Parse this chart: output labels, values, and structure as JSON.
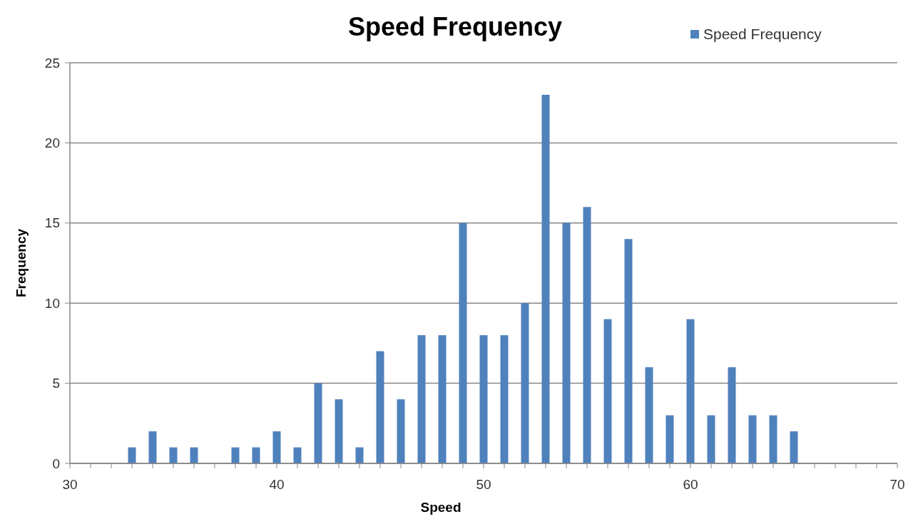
{
  "chart_data": {
    "type": "bar",
    "title": "Speed Frequency",
    "xlabel": "Speed",
    "ylabel": "Frequency",
    "x": [
      33,
      34,
      35,
      36,
      38,
      39,
      40,
      41,
      42,
      43,
      44,
      45,
      46,
      47,
      48,
      49,
      50,
      51,
      52,
      53,
      54,
      55,
      56,
      57,
      58,
      59,
      60,
      61,
      62,
      63,
      64,
      65
    ],
    "series": [
      {
        "name": "Speed Frequency",
        "color": "#4f81bd",
        "values": [
          1,
          2,
          1,
          1,
          1,
          1,
          2,
          1,
          5,
          4,
          1,
          7,
          4,
          8,
          8,
          15,
          8,
          8,
          10,
          23,
          15,
          16,
          9,
          14,
          6,
          3,
          9,
          3,
          6,
          3,
          3,
          2
        ]
      }
    ],
    "xlim": [
      30,
      70
    ],
    "xticks": [
      30,
      {
        "value": 31,
        "label": null
      },
      {
        "value": 32,
        "label": null
      },
      {
        "value": 33,
        "label": null
      },
      {
        "value": 34,
        "label": null
      },
      {
        "value": 35,
        "label": null
      },
      {
        "value": 36,
        "label": null
      },
      {
        "value": 37,
        "label": null
      },
      {
        "value": 38,
        "label": null
      },
      {
        "value": 39,
        "label": null
      },
      40,
      {
        "value": 41,
        "label": null
      },
      {
        "value": 42,
        "label": null
      },
      {
        "value": 43,
        "label": null
      },
      {
        "value": 44,
        "label": null
      },
      {
        "value": 45,
        "label": null
      },
      {
        "value": 46,
        "label": null
      },
      {
        "value": 47,
        "label": null
      },
      {
        "value": 48,
        "label": null
      },
      {
        "value": 49,
        "label": null
      },
      50,
      {
        "value": 51,
        "label": null
      },
      {
        "value": 52,
        "label": null
      },
      {
        "value": 53,
        "label": null
      },
      {
        "value": 54,
        "label": null
      },
      {
        "value": 55,
        "label": null
      },
      {
        "value": 56,
        "label": null
      },
      {
        "value": 57,
        "label": null
      },
      {
        "value": 58,
        "label": null
      },
      {
        "value": 59,
        "label": null
      },
      60,
      {
        "value": 61,
        "label": null
      },
      {
        "value": 62,
        "label": null
      },
      {
        "value": 63,
        "label": null
      },
      {
        "value": 64,
        "label": null
      },
      {
        "value": 65,
        "label": null
      },
      {
        "value": 66,
        "label": null
      },
      {
        "value": 67,
        "label": null
      },
      {
        "value": 68,
        "label": null
      },
      {
        "value": 69,
        "label": null
      },
      70
    ],
    "ylim": [
      0,
      25
    ],
    "yticks": [
      0,
      5,
      10,
      15,
      20,
      25
    ],
    "grid": "y",
    "legend": "top right"
  }
}
